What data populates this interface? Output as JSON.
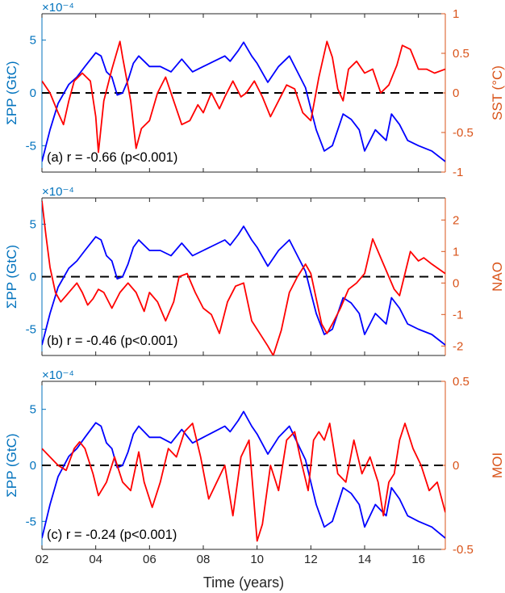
{
  "colors": {
    "left_axis": "#0072BD",
    "right_axis": "#D95319",
    "pp_line": "#0000FF",
    "index_line": "#FF0000",
    "zero_line": "#000000",
    "frame": "#262626"
  },
  "figure": {
    "xlabel": "Time (years)",
    "x_tick_labels": [
      "02",
      "04",
      "06",
      "08",
      "10",
      "12",
      "14",
      "16"
    ]
  },
  "chart_data": [
    {
      "type": "line",
      "panel": "a",
      "annotation": "(a) r = -0.66 (p<0.001)",
      "xlim": [
        2,
        17
      ],
      "x_ticks": [
        2,
        4,
        6,
        8,
        10,
        12,
        14,
        16
      ],
      "ylabel_left": "ΣPP (GtC)",
      "ylim_left": [
        -7.5,
        7.5
      ],
      "y_ticks_left": [
        -5,
        0,
        5
      ],
      "y_tick_labels_left": [
        "-5",
        "0",
        "5"
      ],
      "left_exponent": "×10⁻⁴",
      "ylabel_right": "SST (°C)",
      "ylim_right": [
        -1,
        1
      ],
      "y_ticks_right": [
        -1,
        -0.5,
        0,
        0.5,
        1
      ],
      "y_tick_labels_right": [
        "-1",
        "-0.5",
        "0",
        "0.5",
        "1"
      ],
      "series": [
        {
          "axis": "left",
          "x": [
            2.0,
            2.3,
            2.6,
            3.0,
            3.3,
            3.6,
            4.0,
            4.2,
            4.4,
            4.6,
            4.8,
            5.0,
            5.2,
            5.4,
            5.6,
            6.0,
            6.4,
            6.8,
            7.2,
            7.6,
            8.0,
            8.4,
            8.8,
            9.0,
            9.3,
            9.5,
            9.8,
            10.0,
            10.4,
            10.8,
            11.2,
            11.5,
            11.8,
            12.0,
            12.2,
            12.5,
            12.8,
            13.0,
            13.2,
            13.5,
            13.8,
            14.0,
            14.4,
            14.8,
            15.0,
            15.3,
            15.6,
            16.0,
            16.5,
            17.0
          ],
          "y": [
            -6.5,
            -3.5,
            -1.0,
            0.8,
            1.5,
            2.5,
            3.8,
            3.5,
            2.0,
            1.5,
            -0.2,
            0.0,
            1.2,
            2.8,
            3.5,
            2.5,
            2.5,
            2.0,
            3.2,
            2.0,
            2.5,
            3.0,
            3.5,
            3.0,
            4.0,
            4.8,
            3.5,
            2.8,
            1.0,
            2.5,
            3.5,
            2.0,
            0.5,
            -1.5,
            -3.5,
            -5.5,
            -5.0,
            -3.5,
            -2.0,
            -2.5,
            -3.5,
            -5.5,
            -3.5,
            -4.5,
            -2.0,
            -3.0,
            -4.5,
            -5.0,
            -5.5,
            -6.5
          ]
        },
        {
          "axis": "right",
          "x": [
            2.0,
            2.3,
            2.6,
            2.8,
            3.0,
            3.2,
            3.5,
            3.8,
            4.0,
            4.1,
            4.3,
            4.6,
            4.9,
            5.0,
            5.3,
            5.5,
            5.7,
            6.0,
            6.3,
            6.6,
            6.9,
            7.2,
            7.5,
            7.8,
            8.0,
            8.3,
            8.6,
            8.8,
            9.1,
            9.4,
            9.6,
            9.9,
            10.2,
            10.5,
            10.8,
            11.1,
            11.4,
            11.7,
            12.0,
            12.3,
            12.6,
            12.8,
            13.0,
            13.2,
            13.4,
            13.7,
            14.0,
            14.3,
            14.6,
            14.9,
            15.2,
            15.4,
            15.7,
            16.0,
            16.3,
            16.6,
            17.0
          ],
          "y": [
            0.15,
            0.0,
            -0.25,
            -0.4,
            -0.1,
            0.15,
            0.25,
            0.15,
            -0.3,
            -0.75,
            -0.1,
            0.3,
            0.65,
            0.45,
            -0.1,
            -0.7,
            -0.45,
            -0.35,
            0.0,
            0.2,
            -0.1,
            -0.4,
            -0.35,
            -0.15,
            -0.25,
            0.0,
            -0.2,
            -0.05,
            0.15,
            -0.05,
            0.0,
            0.15,
            -0.05,
            -0.3,
            -0.1,
            0.1,
            0.05,
            -0.25,
            -0.35,
            0.2,
            0.65,
            0.45,
            0.05,
            -0.1,
            0.3,
            0.4,
            0.25,
            0.3,
            0.0,
            0.1,
            0.35,
            0.6,
            0.55,
            0.3,
            0.3,
            0.25,
            0.3
          ]
        }
      ]
    },
    {
      "type": "line",
      "panel": "b",
      "annotation": "(b) r = -0.46 (p<0.001)",
      "xlim": [
        2,
        17
      ],
      "x_ticks": [
        2,
        4,
        6,
        8,
        10,
        12,
        14,
        16
      ],
      "ylabel_left": "ΣPP (GtC)",
      "ylim_left": [
        -7.5,
        7.5
      ],
      "y_ticks_left": [
        -5,
        0,
        5
      ],
      "y_tick_labels_left": [
        "-5",
        "0",
        "5"
      ],
      "left_exponent": "×10⁻⁴",
      "ylabel_right": "NAO",
      "ylim_right": [
        -2.3,
        2.7
      ],
      "y_ticks_right": [
        -2,
        -1,
        0,
        1,
        2
      ],
      "y_tick_labels_right": [
        "-2",
        "-1",
        "0",
        "1",
        "2"
      ],
      "series": [
        {
          "axis": "left",
          "x": [
            2.0,
            2.3,
            2.6,
            3.0,
            3.3,
            3.6,
            4.0,
            4.2,
            4.4,
            4.6,
            4.8,
            5.0,
            5.2,
            5.4,
            5.6,
            6.0,
            6.4,
            6.8,
            7.2,
            7.6,
            8.0,
            8.4,
            8.8,
            9.0,
            9.3,
            9.5,
            9.8,
            10.0,
            10.4,
            10.8,
            11.2,
            11.5,
            11.8,
            12.0,
            12.2,
            12.5,
            12.8,
            13.0,
            13.2,
            13.5,
            13.8,
            14.0,
            14.4,
            14.8,
            15.0,
            15.3,
            15.6,
            16.0,
            16.5,
            17.0
          ],
          "y": [
            -6.5,
            -3.5,
            -1.0,
            0.8,
            1.5,
            2.5,
            3.8,
            3.5,
            2.0,
            1.5,
            -0.2,
            0.0,
            1.2,
            2.8,
            3.5,
            2.5,
            2.5,
            2.0,
            3.2,
            2.0,
            2.5,
            3.0,
            3.5,
            3.0,
            4.0,
            4.8,
            3.5,
            2.8,
            1.0,
            2.5,
            3.5,
            2.0,
            0.5,
            -1.5,
            -3.5,
            -5.5,
            -5.0,
            -3.5,
            -2.0,
            -2.5,
            -3.5,
            -5.5,
            -3.5,
            -4.5,
            -2.0,
            -3.0,
            -4.5,
            -5.0,
            -5.5,
            -6.5
          ]
        },
        {
          "axis": "right",
          "x": [
            2.0,
            2.15,
            2.3,
            2.5,
            2.7,
            2.9,
            3.1,
            3.3,
            3.5,
            3.7,
            3.9,
            4.1,
            4.3,
            4.6,
            4.9,
            5.2,
            5.5,
            5.8,
            6.0,
            6.3,
            6.6,
            6.9,
            7.1,
            7.4,
            7.7,
            8.0,
            8.3,
            8.6,
            8.9,
            9.2,
            9.5,
            9.8,
            10.1,
            10.4,
            10.6,
            10.9,
            11.2,
            11.5,
            11.8,
            12.0,
            12.2,
            12.4,
            12.6,
            12.8,
            13.1,
            13.4,
            13.7,
            14.0,
            14.3,
            14.6,
            14.9,
            15.1,
            15.3,
            15.5,
            15.7,
            16.0,
            16.2,
            16.5,
            17.0
          ],
          "y": [
            2.6,
            1.5,
            0.5,
            -0.3,
            -0.6,
            -0.4,
            -0.2,
            0.0,
            -0.3,
            -0.7,
            -0.5,
            -0.2,
            -0.3,
            -0.8,
            -0.3,
            0.0,
            -0.3,
            -0.9,
            -0.3,
            -0.6,
            -1.2,
            -0.6,
            0.2,
            0.3,
            -0.3,
            -0.8,
            -1.0,
            -1.6,
            -0.6,
            -0.1,
            0.0,
            -1.2,
            -1.6,
            -2.0,
            -2.3,
            -1.5,
            -0.3,
            0.2,
            0.6,
            0.3,
            -0.5,
            -1.3,
            -1.6,
            -1.3,
            -0.8,
            -0.2,
            0.0,
            0.3,
            1.4,
            0.8,
            0.2,
            -0.2,
            -0.4,
            0.3,
            1.0,
            0.7,
            0.8,
            0.6,
            0.3
          ]
        }
      ]
    },
    {
      "type": "line",
      "panel": "c",
      "annotation": "(c) r = -0.24 (p<0.001)",
      "xlim": [
        2,
        17
      ],
      "x_ticks": [
        2,
        4,
        6,
        8,
        10,
        12,
        14,
        16
      ],
      "ylabel_left": "ΣPP (GtC)",
      "ylim_left": [
        -7.5,
        7.5
      ],
      "y_ticks_left": [
        -5,
        0,
        5
      ],
      "y_tick_labels_left": [
        "-5",
        "0",
        "5"
      ],
      "left_exponent": "×10⁻⁴",
      "ylabel_right": "MOI",
      "ylim_right": [
        -0.5,
        0.5
      ],
      "y_ticks_right": [
        -0.5,
        0,
        0.5
      ],
      "y_tick_labels_right": [
        "-0.5",
        "0",
        "0.5"
      ],
      "series": [
        {
          "axis": "left",
          "x": [
            2.0,
            2.3,
            2.6,
            3.0,
            3.3,
            3.6,
            4.0,
            4.2,
            4.4,
            4.6,
            4.8,
            5.0,
            5.2,
            5.4,
            5.6,
            6.0,
            6.4,
            6.8,
            7.2,
            7.6,
            8.0,
            8.4,
            8.8,
            9.0,
            9.3,
            9.5,
            9.8,
            10.0,
            10.4,
            10.8,
            11.2,
            11.5,
            11.8,
            12.0,
            12.2,
            12.5,
            12.8,
            13.0,
            13.2,
            13.5,
            13.8,
            14.0,
            14.4,
            14.8,
            15.0,
            15.3,
            15.6,
            16.0,
            16.5,
            17.0
          ],
          "y": [
            -6.5,
            -3.5,
            -1.0,
            0.8,
            1.5,
            2.5,
            3.8,
            3.5,
            2.0,
            1.5,
            -0.2,
            0.0,
            1.2,
            2.8,
            3.5,
            2.5,
            2.5,
            2.0,
            3.2,
            2.0,
            2.5,
            3.0,
            3.5,
            3.0,
            4.0,
            4.8,
            3.5,
            2.8,
            1.0,
            2.5,
            3.5,
            2.0,
            0.5,
            -1.5,
            -3.5,
            -5.5,
            -5.0,
            -3.5,
            -2.0,
            -2.5,
            -3.5,
            -5.5,
            -3.5,
            -4.5,
            -2.0,
            -3.0,
            -4.5,
            -5.0,
            -5.5,
            -6.5
          ]
        },
        {
          "axis": "right",
          "x": [
            2.0,
            2.3,
            2.6,
            2.9,
            3.2,
            3.4,
            3.6,
            3.9,
            4.1,
            4.4,
            4.7,
            5.0,
            5.3,
            5.6,
            5.8,
            6.1,
            6.4,
            6.7,
            7.0,
            7.3,
            7.6,
            7.9,
            8.2,
            8.5,
            8.8,
            9.1,
            9.4,
            9.7,
            10.0,
            10.2,
            10.5,
            10.8,
            11.1,
            11.4,
            11.6,
            11.9,
            12.1,
            12.3,
            12.5,
            12.7,
            13.0,
            13.3,
            13.6,
            13.9,
            14.2,
            14.5,
            14.7,
            14.9,
            15.1,
            15.3,
            15.5,
            15.8,
            16.1,
            16.4,
            16.7,
            17.0
          ],
          "y": [
            0.1,
            0.05,
            0.0,
            -0.03,
            0.1,
            0.14,
            0.1,
            -0.05,
            -0.18,
            -0.1,
            0.05,
            -0.1,
            -0.15,
            0.08,
            -0.1,
            -0.25,
            -0.1,
            0.1,
            0.05,
            0.2,
            0.25,
            0.05,
            -0.2,
            -0.1,
            0.0,
            -0.3,
            0.05,
            0.15,
            -0.45,
            -0.35,
            0.0,
            -0.15,
            0.15,
            0.2,
            0.05,
            -0.15,
            0.15,
            0.2,
            0.15,
            0.25,
            -0.05,
            -0.1,
            0.15,
            -0.05,
            0.05,
            -0.1,
            -0.3,
            -0.1,
            -0.05,
            0.15,
            0.25,
            0.1,
            0.0,
            -0.15,
            -0.1,
            -0.28
          ]
        }
      ]
    }
  ]
}
